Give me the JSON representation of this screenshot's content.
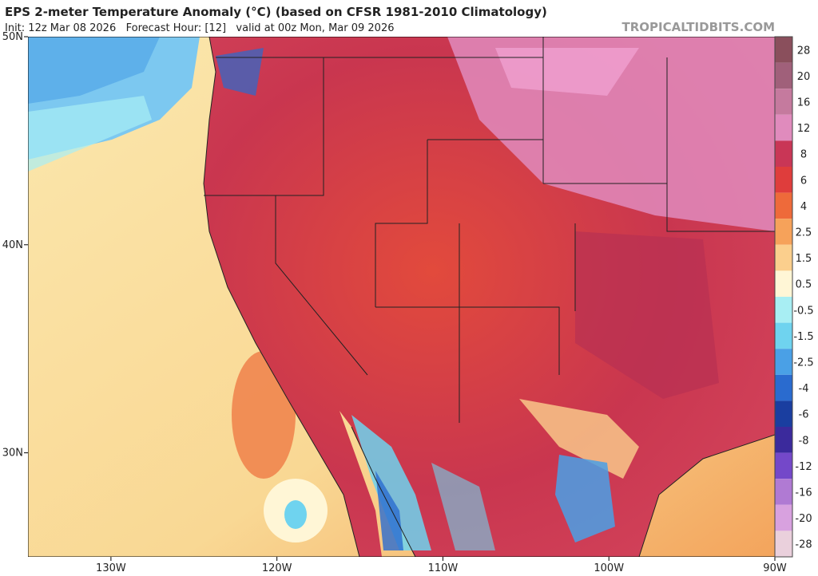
{
  "header": {
    "title": "EPS 2-meter Temperature Anomaly (°C) (based on CFSR 1981-2010 Climatology)",
    "subtitle": "Init: 12z Mar 08 2026   Forecast Hour: [12]   valid at 00z Mon, Mar 09 2026",
    "watermark": "TROPICALTIDBITS.COM"
  },
  "map": {
    "xlim": [
      -135,
      -90
    ],
    "ylim": [
      25,
      50
    ],
    "xticks": [
      {
        "value": -130,
        "label": "130W"
      },
      {
        "value": -120,
        "label": "120W"
      },
      {
        "value": -110,
        "label": "110W"
      },
      {
        "value": -100,
        "label": "100W"
      },
      {
        "value": -90,
        "label": "90W"
      }
    ],
    "yticks": [
      {
        "value": 50,
        "label": "50N"
      },
      {
        "value": 40,
        "label": "40N"
      },
      {
        "value": 30,
        "label": "30N"
      }
    ]
  },
  "colorbar": {
    "levels": [
      28,
      20,
      16,
      12,
      8,
      6,
      4,
      2.5,
      1.5,
      0.5,
      -0.5,
      -1.5,
      -2.5,
      -4,
      -6,
      -8,
      -12,
      -16,
      -20,
      -28
    ],
    "colors": [
      "#8a4f5c",
      "#a0607a",
      "#c57a9e",
      "#e08bbd",
      "#c93656",
      "#df3d3c",
      "#ee6a3a",
      "#f6a25a",
      "#fbcf8d",
      "#fff6d6",
      "#a8eef3",
      "#6fd3ef",
      "#4aa0e6",
      "#2a6bcf",
      "#1a3ea0",
      "#3b2a9c",
      "#7448c9",
      "#b07ad3",
      "#d8a1df",
      "#ead0dc"
    ]
  }
}
